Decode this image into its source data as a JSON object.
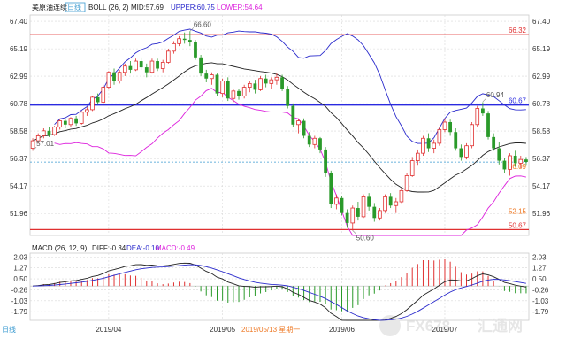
{
  "chart_data": [
    {
      "type": "candlestick",
      "title": "美原油连续",
      "period_badge": "日线",
      "indicator": {
        "name": "BOLL (26, 2)",
        "mid_label": "MID:57.69",
        "upper_label": "UPPER:60.75",
        "lower_label": "LOWER:54.64"
      },
      "y_ticks": [
        "67.40",
        "65.19",
        "62.99",
        "60.78",
        "58.58",
        "56.37",
        "54.17",
        "51.96"
      ],
      "y_tick_values": [
        67.4,
        65.19,
        62.99,
        60.78,
        58.58,
        56.37,
        54.17,
        51.96
      ],
      "ylim": [
        50.2,
        67.9
      ],
      "x_ticks": [
        {
          "label": "2019/04",
          "index": 14
        },
        {
          "label": "2019/05",
          "index": 35
        },
        {
          "label": "2019/06",
          "index": 57
        },
        {
          "label": "2019/07",
          "index": 76
        }
      ],
      "hlines": [
        {
          "value": 66.32,
          "label": "66.32",
          "color": "#e03030"
        },
        {
          "value": 60.67,
          "label": "60.67",
          "color": "#2a2ae0"
        },
        {
          "value": 50.67,
          "label": "50.67",
          "color": "#e03030"
        }
      ],
      "current_price": {
        "value": 56.09,
        "label": "56.09"
      },
      "right_label_extra": {
        "value": 52.15,
        "label": "52.15"
      },
      "annotations": [
        {
          "label": "66.60",
          "index": 29,
          "value": 66.6
        },
        {
          "label": "57.01",
          "index": 0,
          "value": 57.01
        },
        {
          "label": "50.60",
          "index": 59,
          "value": 50.6
        },
        {
          "label": "60.94",
          "index": 83,
          "value": 60.94
        }
      ],
      "candles": [
        [
          57.2,
          58.0,
          57.0,
          57.8
        ],
        [
          57.8,
          58.4,
          57.6,
          58.2
        ],
        [
          58.2,
          58.8,
          58.0,
          58.6
        ],
        [
          58.6,
          58.9,
          58.1,
          58.3
        ],
        [
          58.3,
          59.0,
          58.2,
          58.9
        ],
        [
          58.9,
          59.5,
          58.7,
          59.4
        ],
        [
          59.4,
          59.6,
          58.8,
          59.1
        ],
        [
          59.1,
          59.7,
          58.9,
          59.6
        ],
        [
          59.6,
          59.8,
          59.0,
          59.2
        ],
        [
          59.2,
          60.2,
          59.1,
          60.1
        ],
        [
          60.1,
          60.5,
          59.8,
          60.3
        ],
        [
          60.3,
          61.4,
          60.2,
          61.3
        ],
        [
          61.3,
          61.6,
          60.7,
          60.9
        ],
        [
          60.9,
          62.3,
          60.8,
          62.1
        ],
        [
          62.1,
          63.4,
          62.0,
          63.3
        ],
        [
          63.3,
          63.6,
          62.3,
          62.6
        ],
        [
          62.6,
          63.5,
          62.4,
          63.3
        ],
        [
          63.3,
          64.0,
          63.0,
          63.8
        ],
        [
          63.8,
          64.2,
          63.2,
          63.5
        ],
        [
          63.5,
          64.4,
          63.4,
          64.2
        ],
        [
          64.2,
          64.5,
          63.5,
          63.7
        ],
        [
          63.7,
          64.0,
          62.9,
          63.3
        ],
        [
          63.3,
          64.4,
          63.2,
          64.2
        ],
        [
          64.2,
          64.4,
          63.4,
          63.6
        ],
        [
          63.6,
          64.3,
          63.3,
          64.1
        ],
        [
          64.1,
          65.2,
          64.0,
          65.0
        ],
        [
          65.0,
          65.8,
          64.8,
          65.6
        ],
        [
          65.6,
          66.2,
          65.4,
          66.0
        ],
        [
          66.0,
          66.5,
          65.6,
          65.9
        ],
        [
          65.9,
          66.6,
          65.4,
          65.7
        ],
        [
          65.7,
          65.9,
          64.3,
          64.5
        ],
        [
          64.5,
          64.7,
          63.0,
          63.2
        ],
        [
          63.2,
          63.5,
          62.5,
          62.8
        ],
        [
          62.8,
          63.3,
          62.3,
          63.1
        ],
        [
          63.1,
          63.2,
          61.4,
          61.6
        ],
        [
          61.6,
          62.8,
          61.3,
          62.6
        ],
        [
          62.6,
          62.9,
          61.0,
          61.2
        ],
        [
          61.2,
          62.0,
          60.9,
          61.8
        ],
        [
          61.8,
          62.0,
          61.1,
          61.4
        ],
        [
          61.4,
          62.3,
          61.2,
          62.1
        ],
        [
          62.1,
          62.6,
          61.7,
          62.4
        ],
        [
          62.4,
          62.7,
          61.6,
          61.9
        ],
        [
          61.9,
          63.0,
          61.8,
          62.8
        ],
        [
          62.8,
          63.1,
          62.1,
          62.4
        ],
        [
          62.4,
          62.9,
          62.0,
          62.7
        ],
        [
          62.7,
          63.2,
          62.3,
          62.9
        ],
        [
          62.9,
          63.1,
          61.8,
          62.0
        ],
        [
          62.0,
          62.2,
          60.4,
          60.6
        ],
        [
          60.6,
          60.8,
          58.9,
          59.1
        ],
        [
          59.1,
          59.6,
          58.4,
          59.4
        ],
        [
          59.4,
          59.6,
          58.0,
          58.2
        ],
        [
          58.2,
          58.5,
          57.3,
          57.5
        ],
        [
          57.5,
          58.2,
          57.2,
          58.0
        ],
        [
          58.0,
          58.1,
          56.8,
          57.1
        ],
        [
          57.1,
          57.3,
          54.9,
          55.2
        ],
        [
          55.2,
          55.4,
          52.4,
          52.7
        ],
        [
          52.7,
          53.5,
          52.3,
          53.2
        ],
        [
          53.2,
          53.4,
          51.8,
          52.0
        ],
        [
          52.0,
          52.3,
          50.8,
          51.2
        ],
        [
          51.2,
          52.6,
          50.6,
          52.4
        ],
        [
          52.4,
          52.9,
          51.4,
          51.7
        ],
        [
          51.7,
          53.5,
          51.6,
          53.3
        ],
        [
          53.3,
          53.6,
          52.2,
          52.5
        ],
        [
          52.5,
          52.8,
          51.3,
          51.6
        ],
        [
          51.6,
          52.4,
          51.4,
          52.2
        ],
        [
          52.2,
          53.5,
          52.0,
          53.3
        ],
        [
          53.3,
          53.6,
          52.4,
          52.6
        ],
        [
          52.6,
          53.2,
          52.0,
          52.9
        ],
        [
          52.9,
          54.0,
          52.8,
          53.8
        ],
        [
          53.8,
          55.2,
          53.7,
          55.0
        ],
        [
          55.0,
          56.5,
          54.9,
          56.2
        ],
        [
          56.2,
          57.1,
          55.8,
          56.8
        ],
        [
          56.8,
          58.2,
          56.6,
          58.0
        ],
        [
          58.0,
          58.4,
          56.9,
          57.2
        ],
        [
          57.2,
          57.9,
          56.8,
          57.6
        ],
        [
          57.6,
          58.9,
          57.4,
          58.7
        ],
        [
          58.7,
          59.6,
          58.5,
          59.3
        ],
        [
          59.3,
          59.5,
          58.2,
          58.5
        ],
        [
          58.5,
          58.8,
          57.0,
          57.2
        ],
        [
          57.2,
          57.5,
          56.2,
          56.5
        ],
        [
          56.5,
          57.6,
          56.3,
          57.4
        ],
        [
          57.4,
          59.3,
          57.2,
          59.1
        ],
        [
          59.1,
          60.6,
          58.9,
          60.4
        ],
        [
          60.4,
          60.9,
          59.8,
          60.0
        ],
        [
          60.0,
          60.2,
          57.9,
          58.1
        ],
        [
          58.1,
          58.4,
          57.0,
          57.2
        ],
        [
          57.2,
          57.7,
          55.9,
          56.2
        ],
        [
          56.2,
          56.4,
          55.2,
          55.5
        ],
        [
          55.5,
          56.8,
          55.0,
          56.6
        ],
        [
          56.6,
          57.0,
          55.7,
          56.0
        ],
        [
          56.0,
          56.6,
          55.6,
          56.3
        ],
        [
          56.3,
          56.5,
          55.8,
          56.1
        ]
      ]
    },
    {
      "type": "histogram",
      "indicator": {
        "name": "MACD (26, 12, 9)",
        "diff_label": "DIFF:-0.34",
        "dea_label": "DEA:-0.10",
        "macd_label": "MACD:-0.49"
      },
      "y_ticks": [
        "2.03",
        "1.27",
        "0.50",
        "-0.26",
        "-1.03",
        "-1.79"
      ],
      "y_tick_values": [
        2.03,
        1.27,
        0.5,
        -0.26,
        -1.03,
        -1.79
      ],
      "ylim": [
        -2.4,
        2.3
      ],
      "bottom_label": "日线",
      "hover_date": "2019/05/13 星期一",
      "watermark": {
        "text_a": "FX678",
        "text_b": "汇通网"
      }
    }
  ],
  "colors": {
    "up": "#e03030",
    "down": "#2a9a2a",
    "boll_mid": "#222222",
    "boll_upper": "#2a2acc",
    "boll_lower": "#dd22dd",
    "hline_red": "#e03030",
    "hline_blue": "#2a2ae0",
    "current_price": "#3a9ad0",
    "grid": "#d8d8d8",
    "diff": "#222222",
    "dea": "#2a2acc",
    "accent": "#ee7722"
  }
}
